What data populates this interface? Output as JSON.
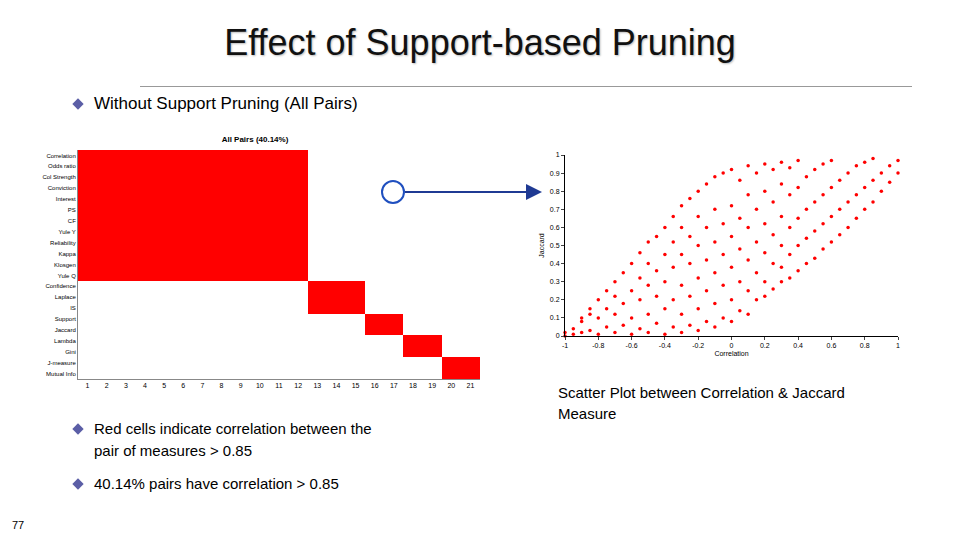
{
  "slide": {
    "title": "Effect of Support-based Pruning",
    "bullets_top": [
      "Without Support Pruning (All Pairs)"
    ],
    "bullets_bottom": [
      "Red cells indicate correlation between the pair of measures > 0.85",
      "40.14% pairs have correlation > 0.85"
    ],
    "caption": "Scatter Plot between Correlation & Jaccard Measure",
    "page": 77
  },
  "chart_data": [
    {
      "type": "heatmap",
      "title": "All Pairs (40.14%)",
      "x": [
        1,
        2,
        3,
        4,
        5,
        6,
        7,
        8,
        9,
        10,
        11,
        12,
        13,
        14,
        15,
        16,
        17,
        18,
        19,
        20,
        21
      ],
      "categories": [
        "Correlation",
        "Odds ratio",
        "Col Strength",
        "Conviction",
        "Interest",
        "PS",
        "CF",
        "Yule Y",
        "Reliability",
        "Kappa",
        "Klosgen",
        "Yule Q",
        "Confidence",
        "Laplace",
        "IS",
        "Support",
        "Jaccard",
        "Lambda",
        "Gini",
        "J-measure",
        "Mutual Info"
      ],
      "z": [
        [
          1,
          1,
          1,
          1,
          1,
          1,
          1,
          1,
          1,
          1,
          1,
          1,
          0,
          0,
          0,
          0,
          0,
          0,
          0,
          0,
          0
        ],
        [
          1,
          1,
          1,
          1,
          1,
          1,
          1,
          1,
          1,
          1,
          1,
          1,
          0,
          0,
          0,
          0,
          0,
          0,
          0,
          0,
          0
        ],
        [
          1,
          1,
          1,
          1,
          1,
          1,
          1,
          1,
          1,
          1,
          1,
          1,
          0,
          0,
          0,
          0,
          0,
          0,
          0,
          0,
          0
        ],
        [
          1,
          1,
          1,
          1,
          1,
          1,
          1,
          1,
          1,
          1,
          1,
          1,
          0,
          0,
          0,
          0,
          0,
          0,
          0,
          0,
          0
        ],
        [
          1,
          1,
          1,
          1,
          1,
          1,
          1,
          1,
          1,
          1,
          1,
          1,
          0,
          0,
          0,
          0,
          0,
          0,
          0,
          0,
          0
        ],
        [
          1,
          1,
          1,
          1,
          1,
          1,
          1,
          1,
          1,
          1,
          1,
          1,
          0,
          0,
          0,
          0,
          0,
          0,
          0,
          0,
          0
        ],
        [
          1,
          1,
          1,
          1,
          1,
          1,
          1,
          1,
          1,
          1,
          1,
          1,
          0,
          0,
          0,
          0,
          0,
          0,
          0,
          0,
          0
        ],
        [
          1,
          1,
          1,
          1,
          1,
          1,
          1,
          1,
          1,
          1,
          1,
          1,
          0,
          0,
          0,
          0,
          0,
          0,
          0,
          0,
          0
        ],
        [
          1,
          1,
          1,
          1,
          1,
          1,
          1,
          1,
          1,
          1,
          1,
          1,
          0,
          0,
          0,
          0,
          0,
          0,
          0,
          0,
          0
        ],
        [
          1,
          1,
          1,
          1,
          1,
          1,
          1,
          1,
          1,
          1,
          1,
          1,
          0,
          0,
          0,
          0,
          0,
          0,
          0,
          0,
          0
        ],
        [
          1,
          1,
          1,
          1,
          1,
          1,
          1,
          1,
          1,
          1,
          1,
          1,
          0,
          0,
          0,
          0,
          0,
          0,
          0,
          0,
          0
        ],
        [
          1,
          1,
          1,
          1,
          1,
          1,
          1,
          1,
          1,
          1,
          1,
          1,
          0,
          0,
          0,
          0,
          0,
          0,
          0,
          0,
          0
        ],
        [
          0,
          0,
          0,
          0,
          0,
          0,
          0,
          0,
          0,
          0,
          0,
          0,
          1,
          1,
          1,
          0,
          0,
          0,
          0,
          0,
          0
        ],
        [
          0,
          0,
          0,
          0,
          0,
          0,
          0,
          0,
          0,
          0,
          0,
          0,
          1,
          1,
          1,
          0,
          0,
          0,
          0,
          0,
          0
        ],
        [
          0,
          0,
          0,
          0,
          0,
          0,
          0,
          0,
          0,
          0,
          0,
          0,
          1,
          1,
          1,
          0,
          0,
          0,
          0,
          0,
          0
        ],
        [
          0,
          0,
          0,
          0,
          0,
          0,
          0,
          0,
          0,
          0,
          0,
          0,
          0,
          0,
          0,
          1,
          1,
          0,
          0,
          0,
          0
        ],
        [
          0,
          0,
          0,
          0,
          0,
          0,
          0,
          0,
          0,
          0,
          0,
          0,
          0,
          0,
          0,
          1,
          1,
          0,
          0,
          0,
          0
        ],
        [
          0,
          0,
          0,
          0,
          0,
          0,
          0,
          0,
          0,
          0,
          0,
          0,
          0,
          0,
          0,
          0,
          0,
          1,
          1,
          0,
          0
        ],
        [
          0,
          0,
          0,
          0,
          0,
          0,
          0,
          0,
          0,
          0,
          0,
          0,
          0,
          0,
          0,
          0,
          0,
          1,
          1,
          0,
          0
        ],
        [
          0,
          0,
          0,
          0,
          0,
          0,
          0,
          0,
          0,
          0,
          0,
          0,
          0,
          0,
          0,
          0,
          0,
          0,
          0,
          1,
          1
        ],
        [
          0,
          0,
          0,
          0,
          0,
          0,
          0,
          0,
          0,
          0,
          0,
          0,
          0,
          0,
          0,
          0,
          0,
          0,
          0,
          1,
          1
        ]
      ],
      "color": "#ff0000",
      "xlim": [
        0.5,
        21.5
      ],
      "xticks": [
        1,
        2,
        3,
        4,
        5,
        6,
        7,
        8,
        9,
        10,
        11,
        12,
        13,
        14,
        15,
        16,
        17,
        18,
        19,
        20,
        21
      ]
    },
    {
      "type": "scatter",
      "x_label": "Correlation",
      "y_label": "Jaccard",
      "color": "#ff0000",
      "marker": "circle",
      "x": [
        -1,
        -1,
        -0.95,
        -0.95,
        -0.9,
        -0.9,
        -0.9,
        -0.85,
        -0.85,
        -0.85,
        -0.8,
        -0.8,
        -0.8,
        -0.75,
        -0.75,
        -0.75,
        -0.7,
        -0.7,
        -0.7,
        -0.7,
        -0.65,
        -0.65,
        -0.65,
        -0.6,
        -0.6,
        -0.6,
        -0.6,
        -0.55,
        -0.55,
        -0.55,
        -0.55,
        -0.5,
        -0.5,
        -0.5,
        -0.5,
        -0.5,
        -0.45,
        -0.45,
        -0.45,
        -0.45,
        -0.4,
        -0.4,
        -0.4,
        -0.4,
        -0.4,
        -0.35,
        -0.35,
        -0.35,
        -0.35,
        -0.35,
        -0.3,
        -0.3,
        -0.3,
        -0.3,
        -0.3,
        -0.3,
        -0.25,
        -0.25,
        -0.25,
        -0.25,
        -0.25,
        -0.2,
        -0.2,
        -0.2,
        -0.2,
        -0.2,
        -0.2,
        -0.15,
        -0.15,
        -0.15,
        -0.15,
        -0.15,
        -0.1,
        -0.1,
        -0.1,
        -0.1,
        -0.1,
        -0.1,
        -0.05,
        -0.05,
        -0.05,
        -0.05,
        -0.05,
        0,
        0,
        0,
        0,
        0,
        0,
        0.05,
        0.05,
        0.05,
        0.05,
        0.05,
        0.1,
        0.1,
        0.1,
        0.1,
        0.1,
        0.1,
        0.15,
        0.15,
        0.15,
        0.15,
        0.15,
        0.2,
        0.2,
        0.2,
        0.2,
        0.2,
        0.2,
        0.25,
        0.25,
        0.25,
        0.25,
        0.25,
        0.3,
        0.3,
        0.3,
        0.3,
        0.3,
        0.3,
        0.35,
        0.35,
        0.35,
        0.35,
        0.35,
        0.4,
        0.4,
        0.4,
        0.4,
        0.4,
        0.45,
        0.45,
        0.45,
        0.45,
        0.5,
        0.5,
        0.5,
        0.5,
        0.55,
        0.55,
        0.55,
        0.55,
        0.6,
        0.6,
        0.6,
        0.6,
        0.65,
        0.65,
        0.65,
        0.7,
        0.7,
        0.7,
        0.75,
        0.75,
        0.75,
        0.8,
        0.8,
        0.8,
        0.85,
        0.85,
        0.85,
        0.9,
        0.9,
        0.95,
        0.95,
        1,
        1
      ],
      "values": [
        0,
        0.02,
        0.01,
        0.04,
        0.02,
        0.08,
        0.1,
        0.03,
        0.12,
        0.15,
        0.01,
        0.1,
        0.2,
        0.05,
        0.15,
        0.25,
        0.02,
        0.12,
        0.22,
        0.3,
        0.06,
        0.18,
        0.35,
        0.01,
        0.1,
        0.25,
        0.4,
        0.04,
        0.2,
        0.32,
        0.46,
        0.02,
        0.12,
        0.28,
        0.4,
        0.52,
        0.07,
        0.22,
        0.36,
        0.55,
        0.01,
        0.15,
        0.3,
        0.45,
        0.6,
        0.05,
        0.2,
        0.38,
        0.52,
        0.66,
        0.02,
        0.12,
        0.28,
        0.45,
        0.6,
        0.72,
        0.06,
        0.22,
        0.4,
        0.55,
        0.76,
        0.03,
        0.15,
        0.32,
        0.5,
        0.66,
        0.8,
        0.08,
        0.25,
        0.42,
        0.6,
        0.84,
        0.05,
        0.18,
        0.35,
        0.52,
        0.7,
        0.88,
        0.1,
        0.28,
        0.45,
        0.62,
        0.9,
        0.08,
        0.2,
        0.38,
        0.55,
        0.72,
        0.92,
        0.14,
        0.3,
        0.48,
        0.65,
        0.86,
        0.12,
        0.25,
        0.42,
        0.6,
        0.78,
        0.94,
        0.2,
        0.35,
        0.52,
        0.7,
        0.9,
        0.22,
        0.3,
        0.46,
        0.62,
        0.8,
        0.95,
        0.26,
        0.4,
        0.56,
        0.74,
        0.92,
        0.3,
        0.38,
        0.5,
        0.66,
        0.84,
        0.96,
        0.32,
        0.45,
        0.6,
        0.78,
        0.93,
        0.36,
        0.5,
        0.65,
        0.82,
        0.97,
        0.4,
        0.54,
        0.7,
        0.88,
        0.43,
        0.58,
        0.74,
        0.92,
        0.48,
        0.62,
        0.78,
        0.95,
        0.52,
        0.66,
        0.82,
        0.97,
        0.56,
        0.7,
        0.86,
        0.6,
        0.74,
        0.9,
        0.65,
        0.78,
        0.94,
        0.7,
        0.82,
        0.96,
        0.74,
        0.86,
        0.98,
        0.8,
        0.9,
        0.85,
        0.94,
        0.9,
        0.97
      ],
      "xlim": [
        -1,
        1
      ],
      "ylim": [
        0,
        1
      ],
      "xticks": [
        -1,
        -0.8,
        -0.6,
        -0.4,
        -0.2,
        0,
        0.2,
        0.4,
        0.6,
        0.8,
        1
      ],
      "yticks": [
        0,
        0.1,
        0.2,
        0.3,
        0.4,
        0.5,
        0.6,
        0.7,
        0.8,
        0.9,
        1
      ]
    }
  ]
}
